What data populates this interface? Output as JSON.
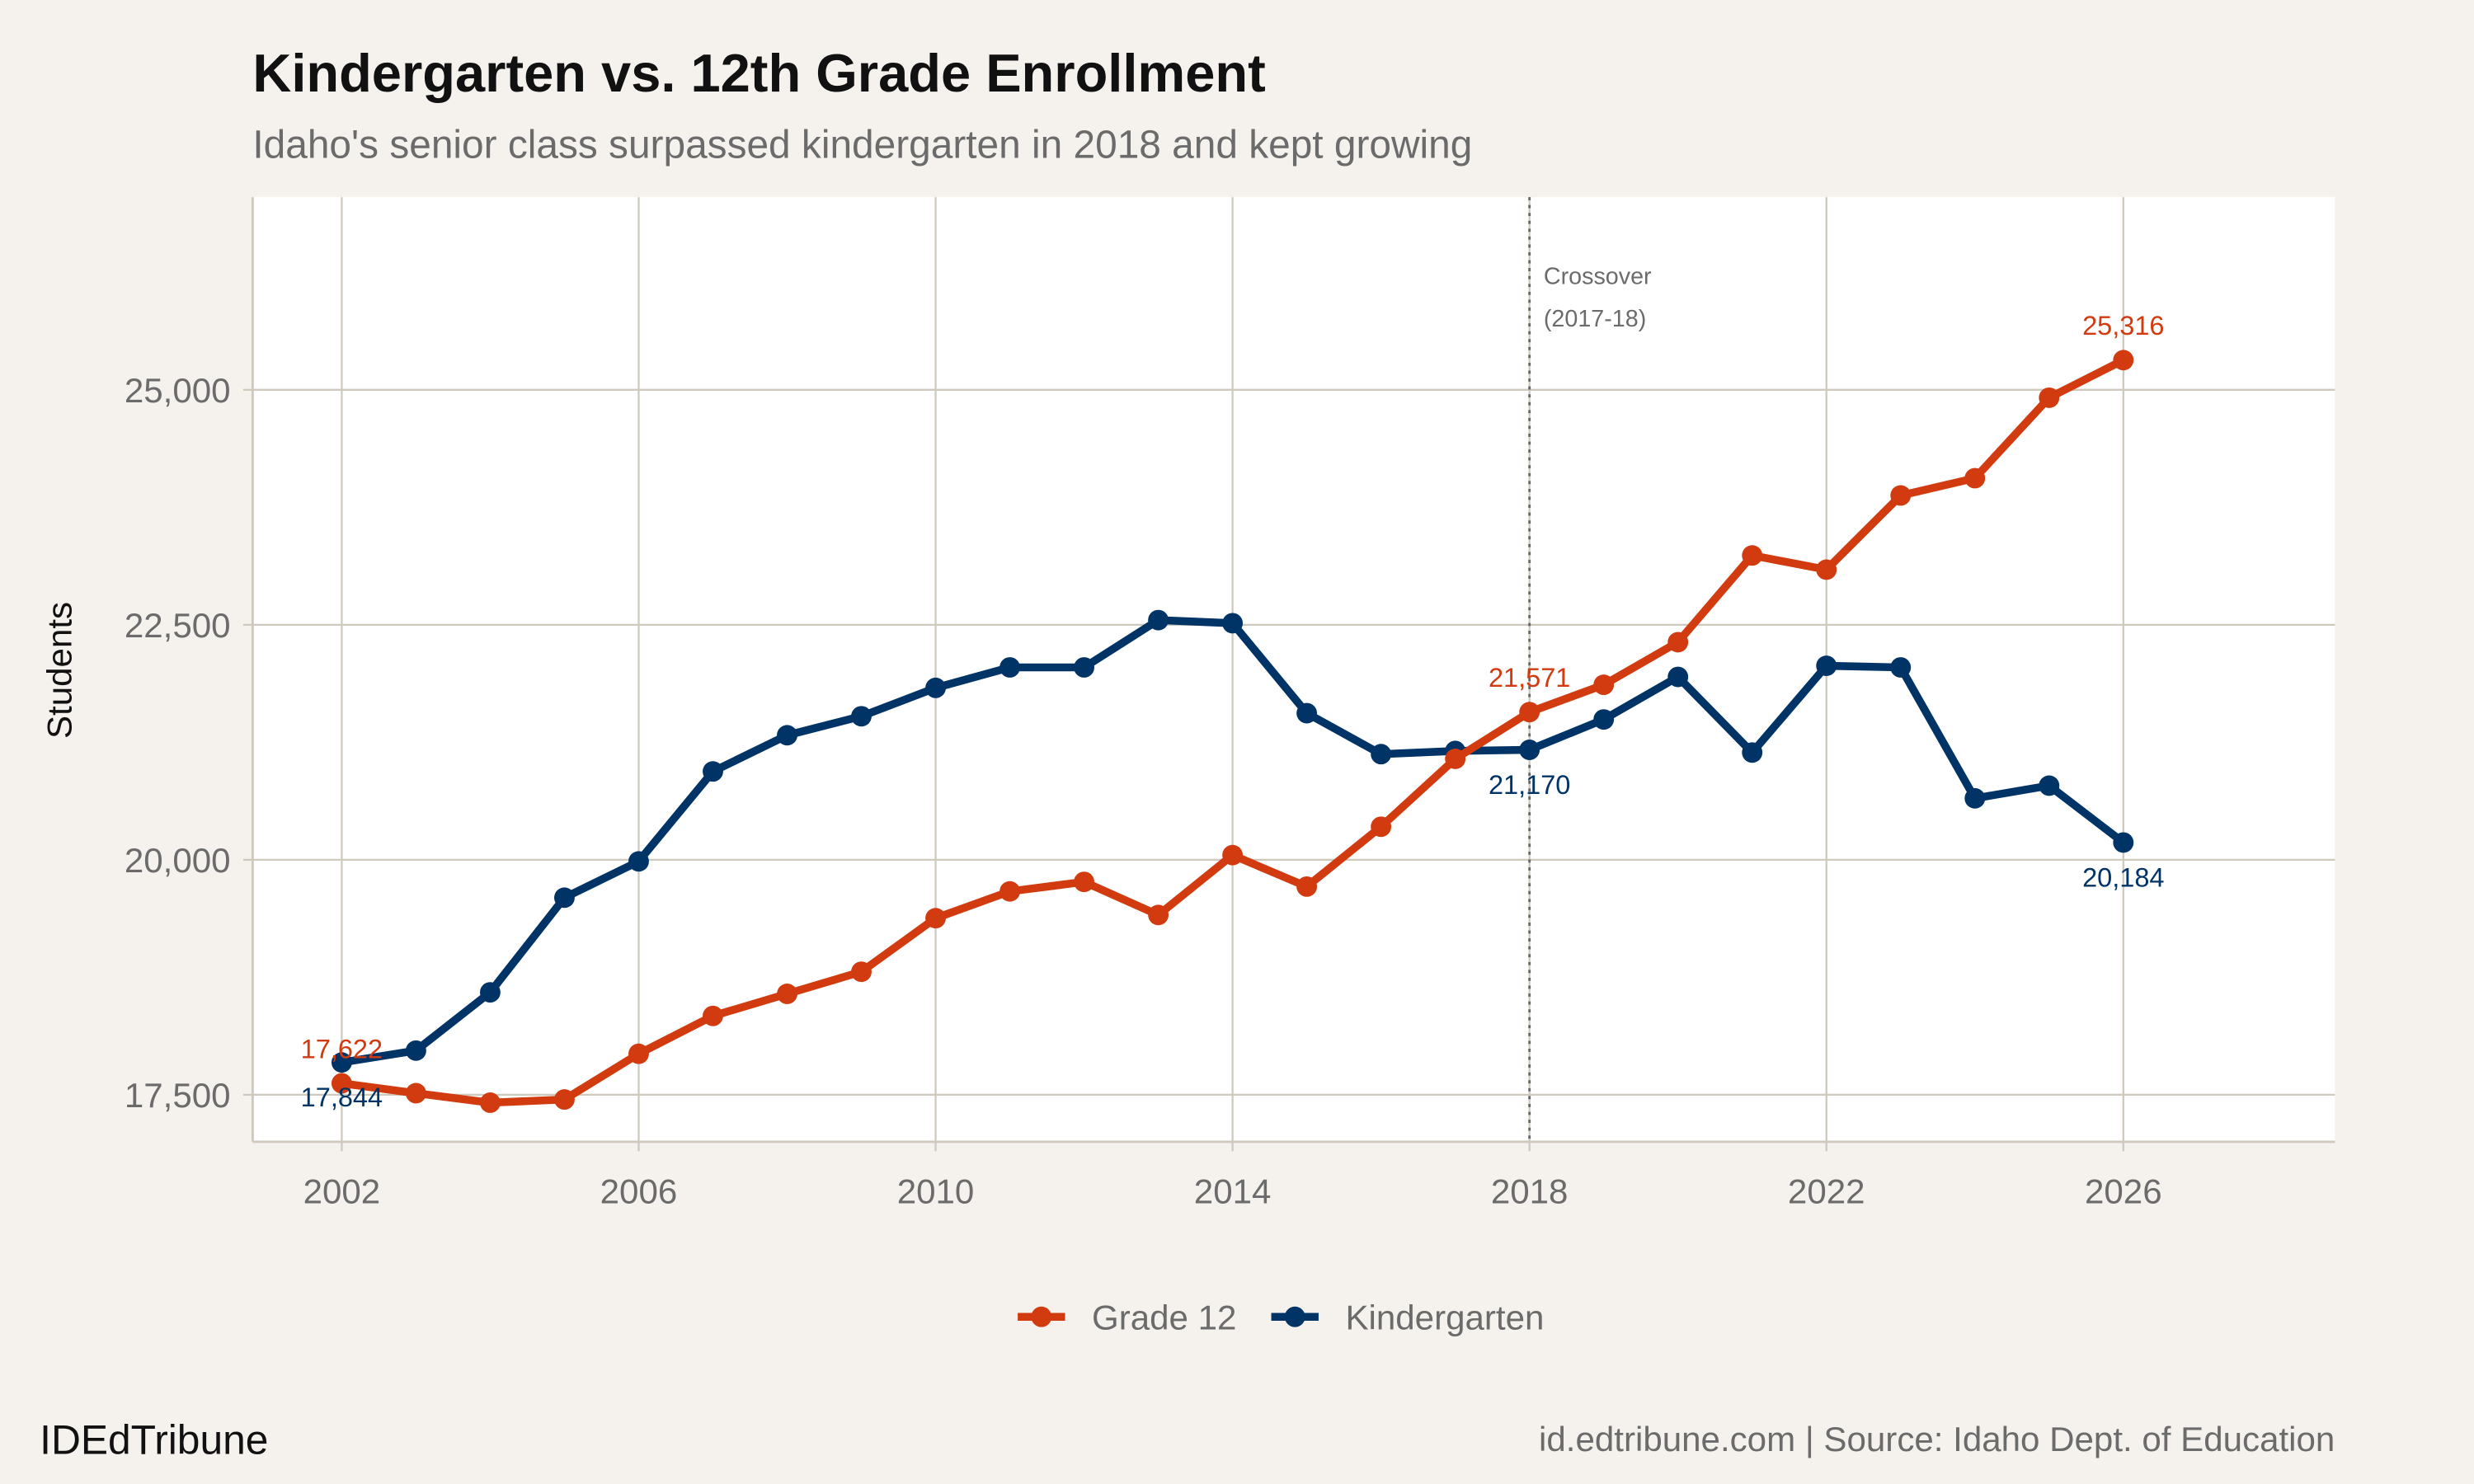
{
  "title": "Kindergarten vs. 12th Grade Enrollment",
  "subtitle": "Idaho's senior class surpassed kindergarten in 2018 and kept growing",
  "caption_left": "IDEdTribune",
  "caption_right": "id.edtribune.com | Source: Idaho Dept. of Education",
  "colors": {
    "grade12": "#d13b0f",
    "kindergarten": "#003366",
    "background": "#f5f2ed",
    "panel": "#ffffff",
    "grid": "#cfc8bd"
  },
  "chart_data": {
    "type": "line",
    "title": "Kindergarten vs. 12th Grade Enrollment",
    "subtitle": "Idaho's senior class surpassed kindergarten in 2018 and kept growing",
    "xlabel": "",
    "ylabel": "Students",
    "xlim": [
      2000.8,
      2028.85
    ],
    "ylim": [
      17000,
      27050
    ],
    "x_ticks": [
      2002,
      2006,
      2010,
      2014,
      2018,
      2022,
      2026
    ],
    "y_ticks": [
      17500,
      20000,
      22500,
      25000
    ],
    "y_tick_labels": [
      "17,500",
      "20,000",
      "22,500",
      "25,000"
    ],
    "grid": true,
    "legend_position": "bottom",
    "x": [
      2002,
      2003,
      2004,
      2005,
      2006,
      2007,
      2008,
      2009,
      2010,
      2011,
      2012,
      2013,
      2014,
      2015,
      2016,
      2017,
      2018,
      2019,
      2020,
      2021,
      2022,
      2023,
      2024,
      2025,
      2026
    ],
    "series": [
      {
        "name": "Grade 12",
        "color": "#d13b0f",
        "values": [
          17622,
          17517,
          17416,
          17450,
          17936,
          18339,
          18574,
          18809,
          19379,
          19664,
          19765,
          19413,
          20050,
          19715,
          20352,
          21074,
          21571,
          21862,
          22315,
          23238,
          23087,
          23876,
          24060,
          24916,
          25316
        ]
      },
      {
        "name": "Kindergarten",
        "color": "#003366",
        "values": [
          17844,
          17970,
          18590,
          19597,
          19983,
          20940,
          21325,
          21527,
          21829,
          22047,
          22047,
          22550,
          22517,
          21560,
          21124,
          21158,
          21170,
          21493,
          21946,
          21141,
          22064,
          22047,
          20654,
          20789,
          20184
        ]
      }
    ],
    "data_labels": [
      {
        "series": "Grade 12",
        "x": 2002,
        "text": "17,622",
        "pos": "above"
      },
      {
        "series": "Grade 12",
        "x": 2018,
        "text": "21,571",
        "pos": "above"
      },
      {
        "series": "Grade 12",
        "x": 2026,
        "text": "25,316",
        "pos": "above"
      },
      {
        "series": "Kindergarten",
        "x": 2002,
        "text": "17,844",
        "pos": "below"
      },
      {
        "series": "Kindergarten",
        "x": 2018,
        "text": "21,170",
        "pos": "below"
      },
      {
        "series": "Kindergarten",
        "x": 2026,
        "text": "20,184",
        "pos": "below"
      }
    ],
    "annotation": {
      "x": 2018,
      "line1": "Crossover",
      "line2": "(2017-18)",
      "style": "dotted"
    }
  }
}
